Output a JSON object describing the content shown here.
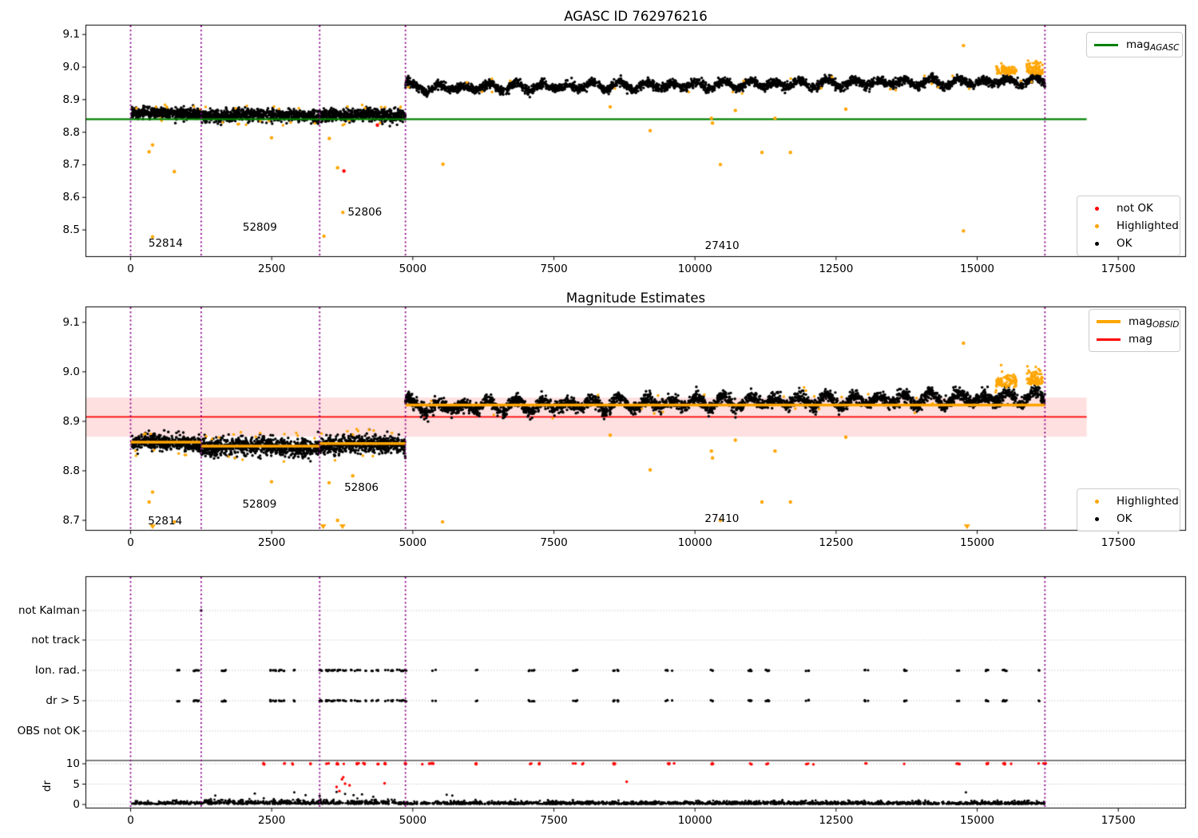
{
  "colors": {
    "ok": "#000000",
    "highlighted": "#ffa500",
    "not_ok": "#ff0000",
    "agasc_line": "#008000",
    "mag_line": "#ff0000",
    "mag_band": "rgba(255,0,0,0.12)",
    "obsid_line": "#ffa500",
    "vline": "#8b008b",
    "grid": "#b5b5b5",
    "spine": "#000000"
  },
  "chart_data": [
    {
      "type": "scatter",
      "title": "AGASC ID 762976216",
      "xlim": [
        -800,
        18700
      ],
      "ylim": [
        8.417,
        9.13
      ],
      "xticks": [
        {
          "v": 0,
          "l": "0"
        },
        {
          "v": 2500,
          "l": "2500"
        },
        {
          "v": 5000,
          "l": "5000"
        },
        {
          "v": 7500,
          "l": "7500"
        },
        {
          "v": 10000,
          "l": "10000"
        },
        {
          "v": 12500,
          "l": "12500"
        },
        {
          "v": 15000,
          "l": "15000"
        },
        {
          "v": 17500,
          "l": "17500"
        }
      ],
      "yticks": [
        {
          "v": 9.1,
          "l": "9.1"
        },
        {
          "v": 9.0,
          "l": "9.0"
        },
        {
          "v": 8.9,
          "l": "8.9"
        },
        {
          "v": 8.8,
          "l": "8.8"
        },
        {
          "v": 8.7,
          "l": "8.7"
        },
        {
          "v": 8.6,
          "l": "8.6"
        },
        {
          "v": 8.5,
          "l": "8.5"
        }
      ],
      "vlines": [
        0,
        1250,
        3350,
        4870,
        16200
      ],
      "agasc_line": {
        "y": 8.84,
        "x0": -800,
        "x1": 16940
      },
      "segments": [
        {
          "x0": 20,
          "x1": 1250,
          "mean": 8.857,
          "sigma": 0.008,
          "n": 450,
          "seed": 11,
          "hfrac": 0.02
        },
        {
          "x0": 1250,
          "x1": 3350,
          "mean": 8.852,
          "sigma": 0.009,
          "n": 760,
          "seed": 12,
          "hfrac": 0.02
        },
        {
          "x0": 3350,
          "x1": 4870,
          "mean": 8.852,
          "sigma": 0.009,
          "n": 560,
          "seed": 13,
          "hfrac": 0.02
        },
        {
          "x0": 4870,
          "x1": 16200,
          "mean": 8.935,
          "rise": 0.022,
          "sigma": 0.0065,
          "wiggle": 0.0095,
          "period": 460,
          "bump": 0.016,
          "n": 3000,
          "seed": 14,
          "hfrac": 0.008
        }
      ],
      "highlight_clusters": [
        {
          "x0": 15340,
          "x1": 15700,
          "ybase": 8.975,
          "yspread": 0.022,
          "n": 80,
          "seed": 21
        },
        {
          "x0": 15880,
          "x1": 16160,
          "ybase": 8.975,
          "yspread": 0.028,
          "n": 80,
          "seed": 22
        }
      ],
      "highlighted_points": [
        [
          389,
          8.761
        ],
        [
          328,
          8.74
        ],
        [
          775,
          8.679
        ],
        [
          389,
          8.479
        ],
        [
          2497,
          8.783
        ],
        [
          3520,
          8.781
        ],
        [
          3667,
          8.691
        ],
        [
          3760,
          8.554
        ],
        [
          3426,
          8.481
        ],
        [
          5534,
          8.702
        ],
        [
          9206,
          8.805
        ],
        [
          10291,
          8.843
        ],
        [
          10310,
          8.828
        ],
        [
          11418,
          8.843
        ],
        [
          10450,
          8.701
        ],
        [
          11186,
          8.738
        ],
        [
          11691,
          8.738
        ],
        [
          12672,
          8.871
        ],
        [
          14757,
          9.066
        ],
        [
          14757,
          8.497
        ],
        [
          8498,
          8.878
        ],
        [
          10715,
          8.867
        ]
      ],
      "not_ok_points": [
        [
          3780,
          8.681
        ],
        [
          4373,
          8.822
        ]
      ],
      "obsid_labels": [
        {
          "text": "52814",
          "x": 620,
          "y": 8.458
        },
        {
          "text": "52809",
          "x": 2290,
          "y": 8.507
        },
        {
          "text": "52806",
          "x": 4150,
          "y": 8.554
        },
        {
          "text": "27410",
          "x": 10480,
          "y": 8.451
        }
      ],
      "legend_lines": [
        {
          "label": "mag",
          "sub": "AGASC",
          "color": "#008000"
        }
      ],
      "legend_markers": [
        {
          "label": "not OK",
          "color": "#ff0000"
        },
        {
          "label": "Highlighted",
          "color": "#ffa500"
        },
        {
          "label": "OK",
          "color": "#000000"
        }
      ]
    },
    {
      "type": "scatter",
      "title": "Magnitude Estimates",
      "xlim": [
        -800,
        18700
      ],
      "ylim": [
        8.679,
        9.132
      ],
      "xticks": [
        {
          "v": 0,
          "l": "0"
        },
        {
          "v": 2500,
          "l": "2500"
        },
        {
          "v": 5000,
          "l": "5000"
        },
        {
          "v": 7500,
          "l": "7500"
        },
        {
          "v": 10000,
          "l": "10000"
        },
        {
          "v": 12500,
          "l": "12500"
        },
        {
          "v": 15000,
          "l": "15000"
        },
        {
          "v": 17500,
          "l": "17500"
        }
      ],
      "yticks": [
        {
          "v": 9.1,
          "l": "9.1"
        },
        {
          "v": 9.0,
          "l": "9.0"
        },
        {
          "v": 8.9,
          "l": "8.9"
        },
        {
          "v": 8.8,
          "l": "8.8"
        },
        {
          "v": 8.7,
          "l": "8.7"
        }
      ],
      "vlines": [
        0,
        1250,
        3350,
        4870,
        16200
      ],
      "mag_line": {
        "y": 8.909,
        "x0": -800,
        "x1": 16940
      },
      "mag_band": {
        "y0": 8.869,
        "y1": 8.948,
        "x0": -800,
        "x1": 16940
      },
      "obsid_lines": [
        {
          "x0": 0,
          "x1": 1250,
          "y": 8.858
        },
        {
          "x0": 1250,
          "x1": 3350,
          "y": 8.85
        },
        {
          "x0": 3350,
          "x1": 4870,
          "y": 8.855
        },
        {
          "x0": 4870,
          "x1": 16200,
          "y": 8.933
        }
      ],
      "segments": [
        {
          "x0": 20,
          "x1": 1250,
          "mean": 8.856,
          "sigma": 0.008,
          "n": 450,
          "seed": 31,
          "hfrac": 0.02
        },
        {
          "x0": 1250,
          "x1": 3350,
          "mean": 8.848,
          "sigma": 0.009,
          "n": 760,
          "seed": 32,
          "hfrac": 0.02
        },
        {
          "x0": 3350,
          "x1": 4870,
          "mean": 8.852,
          "sigma": 0.009,
          "n": 560,
          "seed": 33,
          "hfrac": 0.02
        },
        {
          "x0": 4870,
          "x1": 16200,
          "mean": 8.928,
          "rise": 0.02,
          "sigma": 0.0065,
          "wiggle": 0.0095,
          "period": 460,
          "bump": 0.014,
          "n": 3000,
          "seed": 34,
          "hfrac": 0.008
        }
      ],
      "highlight_clusters": [
        {
          "x0": 15340,
          "x1": 15700,
          "ybase": 8.968,
          "yspread": 0.022,
          "n": 80,
          "seed": 41
        },
        {
          "x0": 15880,
          "x1": 16160,
          "ybase": 8.968,
          "yspread": 0.03,
          "n": 80,
          "seed": 42
        }
      ],
      "highlighted_points": [
        [
          389,
          8.757
        ],
        [
          328,
          8.737
        ],
        [
          775,
          8.697
        ],
        [
          2497,
          8.778
        ],
        [
          3516,
          8.776
        ],
        [
          3936,
          8.79
        ],
        [
          3667,
          8.7
        ],
        [
          5527,
          8.697
        ],
        [
          9206,
          8.802
        ],
        [
          10291,
          8.84
        ],
        [
          10310,
          8.826
        ],
        [
          11418,
          8.84
        ],
        [
          10450,
          8.7
        ],
        [
          11186,
          8.737
        ],
        [
          11691,
          8.737
        ],
        [
          12672,
          8.868
        ],
        [
          14757,
          9.058
        ],
        [
          8498,
          8.872
        ],
        [
          10715,
          8.862
        ]
      ],
      "clipped_points": [
        389,
        3412,
        3755,
        14820
      ],
      "obsid_labels": [
        {
          "text": "52814",
          "x": 611,
          "y": 8.698
        },
        {
          "text": "52809",
          "x": 2284,
          "y": 8.732
        },
        {
          "text": "52806",
          "x": 4090,
          "y": 8.766
        },
        {
          "text": "27410",
          "x": 10477,
          "y": 8.703
        }
      ],
      "legend_lines": [
        {
          "label": "mag",
          "sub": "OBSID",
          "color": "#ffa500"
        },
        {
          "label": "mag",
          "sub": "",
          "color": "#ff0000"
        }
      ],
      "legend_markers": [
        {
          "label": "Highlighted",
          "color": "#ffa500"
        },
        {
          "label": "OK",
          "color": "#000000"
        }
      ]
    },
    {
      "type": "flags-and-dr",
      "xlim": [
        -800,
        18700
      ],
      "xticks": [
        {
          "v": 0,
          "l": "0"
        },
        {
          "v": 2500,
          "l": "2500"
        },
        {
          "v": 5000,
          "l": "5000"
        },
        {
          "v": 7500,
          "l": "7500"
        },
        {
          "v": 10000,
          "l": "10000"
        },
        {
          "v": 12500,
          "l": "12500"
        },
        {
          "v": 15000,
          "l": "15000"
        },
        {
          "v": 17500,
          "l": "17500"
        }
      ],
      "vlines": [
        0,
        1250,
        3350,
        4870,
        16200
      ],
      "rows": [
        "not Kalman",
        "not track",
        "Ion. rad.",
        "dr > 5",
        "OBS not OK"
      ],
      "dr_ticks": [
        {
          "v": 10,
          "l": "10"
        },
        {
          "v": 5,
          "l": "5"
        },
        {
          "v": 0,
          "l": "0"
        }
      ],
      "dr_label": "dr",
      "clip_line_dr": 10.8,
      "clip_value": 10,
      "not_kalman_points": [
        1250
      ],
      "flag_clusters": [
        830,
        1160,
        1210,
        1650,
        2500,
        2570,
        2660,
        2860,
        3330,
        3420,
        3500,
        3580,
        3670,
        3770,
        3860,
        3960,
        4060,
        4170,
        4280,
        4400,
        4520,
        4650,
        4760,
        4830,
        5370,
        6120,
        7100,
        7860,
        8580,
        9530,
        10300,
        10980,
        11280,
        11990,
        13030,
        13710,
        14660,
        15170,
        15480,
        16100
      ],
      "dr_clipped_clusters": [
        2355,
        2709,
        2850,
        3204,
        3487,
        3667,
        3794,
        4020,
        4147,
        4378,
        4515,
        4854,
        5174,
        5316,
        5358,
        6120,
        7100,
        7250,
        7860,
        8000,
        8580,
        9530,
        9650,
        10300,
        10980,
        11280,
        11990,
        12100,
        13030,
        13710,
        14660,
        15170,
        15480,
        15600,
        16100,
        16190
      ],
      "dr_red_points": [
        [
          3650,
          4.3
        ],
        [
          3700,
          3.3
        ],
        [
          3745,
          6.2
        ],
        [
          3768,
          6.7
        ],
        [
          3800,
          5.1
        ],
        [
          3880,
          4.7
        ],
        [
          4500,
          5.2
        ],
        [
          8790,
          5.6
        ]
      ],
      "dr_black_spikes": [
        [
          1500,
          2.2
        ],
        [
          2200,
          2.7
        ],
        [
          2900,
          3.0
        ],
        [
          3100,
          2.3
        ],
        [
          3350,
          2.1
        ],
        [
          3650,
          3.1
        ],
        [
          3800,
          2.6
        ],
        [
          3950,
          2.3
        ],
        [
          4100,
          2.5
        ],
        [
          4300,
          1.9
        ],
        [
          5600,
          2.4
        ],
        [
          5700,
          2.2
        ],
        [
          14800,
          3.0
        ]
      ],
      "dr_baseline": {
        "n": 2400,
        "x0": 20,
        "x1": 16200,
        "seed": 55
      }
    }
  ]
}
